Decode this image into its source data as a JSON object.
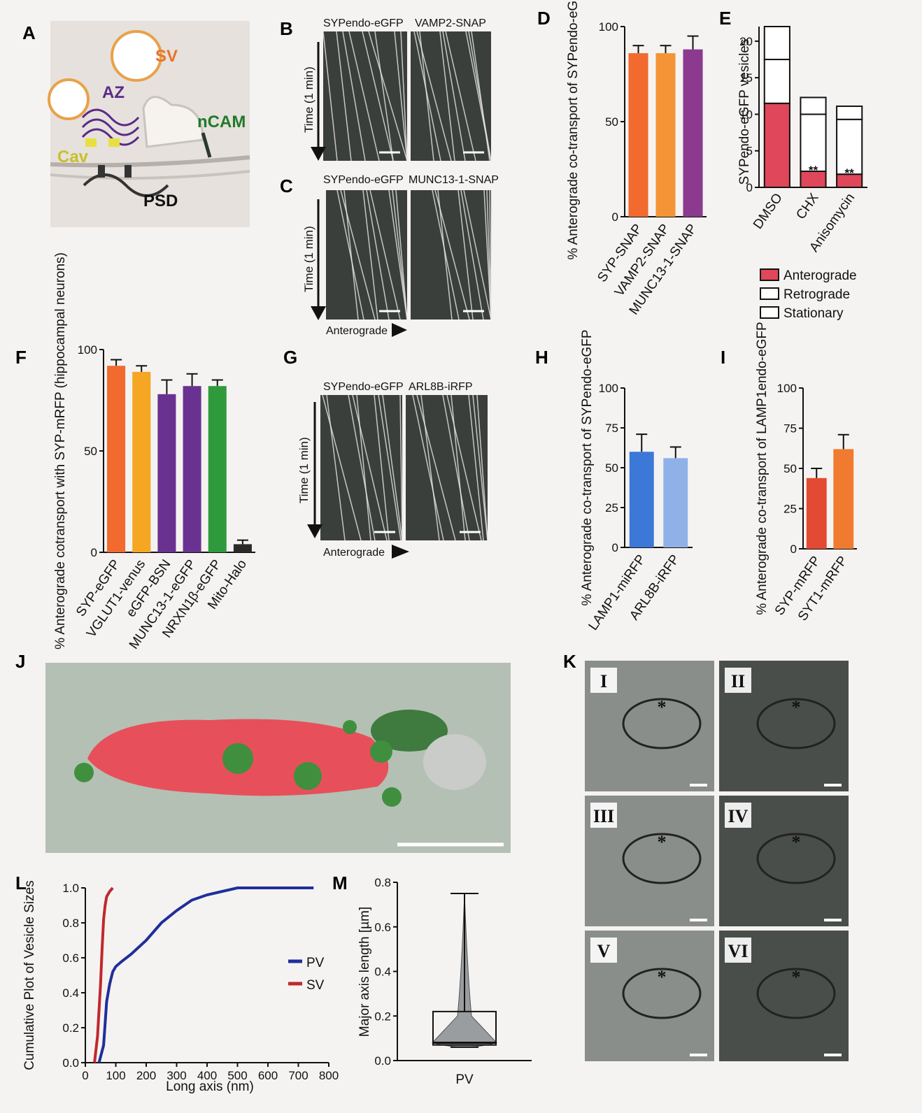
{
  "panels": {
    "A": {
      "label": "A",
      "labels": {
        "sv": "SV",
        "az": "AZ",
        "ncam": "nCAM",
        "cav": "Cav",
        "psd": "PSD"
      }
    },
    "B": {
      "label": "B",
      "left": "SYPendo-eGFP",
      "right": "VAMP2-SNAP",
      "time": "Time (1 min)"
    },
    "C": {
      "label": "C",
      "left": "SYPendo-eGFP",
      "right": "MUNC13-1-SNAP",
      "time": "Time (1 min)",
      "direction": "Anterograde"
    },
    "G": {
      "label": "G",
      "left": "SYPendo-eGFP",
      "right": "ARL8B-iRFP",
      "time": "Time (1 min)",
      "direction": "Anterograde"
    },
    "J": {
      "label": "J"
    },
    "K": {
      "label": "K",
      "tiles": [
        "I",
        "II",
        "III",
        "IV",
        "V",
        "VI"
      ]
    },
    "L": {
      "label": "L"
    },
    "M": {
      "label": "M"
    }
  },
  "chart_data": [
    {
      "id": "D",
      "label": "D",
      "type": "bar",
      "ylabel": "% Anterograde co-transport of SYPendo-eGFP",
      "categories": [
        "SYP-SNAP",
        "VAMP2-SNAP",
        "MUNC13-1-SNAP"
      ],
      "values": [
        86,
        86,
        88
      ],
      "errors": [
        4,
        4,
        7
      ],
      "ylim": [
        0,
        100
      ],
      "yticks": [
        0,
        50,
        100
      ],
      "colors": [
        "#f26a2e",
        "#f59436",
        "#8b3a8f"
      ]
    },
    {
      "id": "E",
      "label": "E",
      "type": "bar",
      "stacked": true,
      "ylabel": "SYPendo-eGFP vesicles",
      "categories": [
        "DMSO",
        "CHX",
        "Anisomycin"
      ],
      "series": [
        {
          "name": "Anterograde",
          "values": [
            11.5,
            2.2,
            1.8
          ]
        },
        {
          "name": "Retrograde",
          "values": [
            6,
            7.8,
            7.5
          ]
        },
        {
          "name": "Stationary",
          "values": [
            4.5,
            2.3,
            1.8
          ]
        }
      ],
      "ylim": [
        0,
        22
      ],
      "yticks": [
        0,
        5,
        10,
        15,
        20
      ],
      "annotations": [
        "**",
        "**"
      ],
      "colors": [
        "#e0475a",
        "#ffffff",
        "#ffffff"
      ]
    },
    {
      "id": "F",
      "label": "F",
      "type": "bar",
      "ylabel": "% Anterograde cotransport with SYP-mRFP (hippocampal neurons)",
      "categories": [
        "SYP-eGFP",
        "VGLUT1-venus",
        "eGFP-BSN",
        "MUNC13-1-eGFP",
        "NRXN1β-eGFP",
        "Mito-Halo"
      ],
      "values": [
        92,
        89,
        78,
        82,
        82,
        4
      ],
      "errors": [
        3,
        3,
        7,
        6,
        3,
        2
      ],
      "ylim": [
        0,
        100
      ],
      "yticks": [
        0,
        50,
        100
      ],
      "colors": [
        "#f26a2e",
        "#f5a623",
        "#6a3290",
        "#6a3290",
        "#2f9a3c",
        "#2a2a2a"
      ]
    },
    {
      "id": "H",
      "label": "H",
      "type": "bar",
      "ylabel": "% Anterograde co-transport of SYPendo-eGFP",
      "categories": [
        "LAMP1-miRFP",
        "ARL8B-iRFP"
      ],
      "values": [
        60,
        56
      ],
      "errors": [
        11,
        7
      ],
      "ylim": [
        0,
        100
      ],
      "yticks": [
        0,
        25,
        50,
        75,
        100
      ],
      "colors": [
        "#3b78d8",
        "#8fb1e8"
      ]
    },
    {
      "id": "I",
      "label": "I",
      "type": "bar",
      "ylabel": "% Anterograde co-transport of LAMP1endo-eGFP",
      "categories": [
        "SYP-mRFP",
        "SYT1-mRFP"
      ],
      "values": [
        44,
        62
      ],
      "errors": [
        6,
        9
      ],
      "ylim": [
        0,
        100
      ],
      "yticks": [
        0,
        25,
        50,
        75,
        100
      ],
      "colors": [
        "#e34a33",
        "#f07a30"
      ]
    },
    {
      "id": "L",
      "label": "L",
      "type": "line",
      "ylabel": "Cumulative Plot of Vesicle Sizes",
      "xlabel": "Long axis (nm)",
      "xlim": [
        0,
        800
      ],
      "ylim": [
        0,
        1.0
      ],
      "xticks": [
        0,
        100,
        200,
        300,
        400,
        500,
        600,
        700,
        800
      ],
      "yticks": [
        0.0,
        0.2,
        0.4,
        0.6,
        0.8,
        1.0
      ],
      "series": [
        {
          "name": "PV",
          "color": "#1f2f9a",
          "x": [
            45,
            60,
            70,
            80,
            90,
            100,
            120,
            150,
            200,
            250,
            300,
            350,
            400,
            450,
            500,
            600,
            700,
            750
          ],
          "y": [
            0,
            0.1,
            0.35,
            0.45,
            0.52,
            0.55,
            0.58,
            0.62,
            0.7,
            0.8,
            0.87,
            0.93,
            0.96,
            0.98,
            1.0,
            1.0,
            1.0,
            1.0
          ]
        },
        {
          "name": "SV",
          "color": "#c0282d",
          "x": [
            30,
            40,
            50,
            55,
            60,
            65,
            70,
            80,
            90
          ],
          "y": [
            0,
            0.15,
            0.45,
            0.65,
            0.82,
            0.9,
            0.95,
            0.98,
            1.0
          ]
        }
      ]
    },
    {
      "id": "M",
      "label": "M",
      "type": "box",
      "ylabel": "Major axis length [µm]",
      "categories": [
        "PV"
      ],
      "ylim": [
        0,
        0.8
      ],
      "yticks": [
        0.0,
        0.2,
        0.4,
        0.6,
        0.8
      ],
      "stats": {
        "min": 0.06,
        "q1": 0.07,
        "median": 0.08,
        "q3": 0.22,
        "max": 0.75
      }
    }
  ]
}
